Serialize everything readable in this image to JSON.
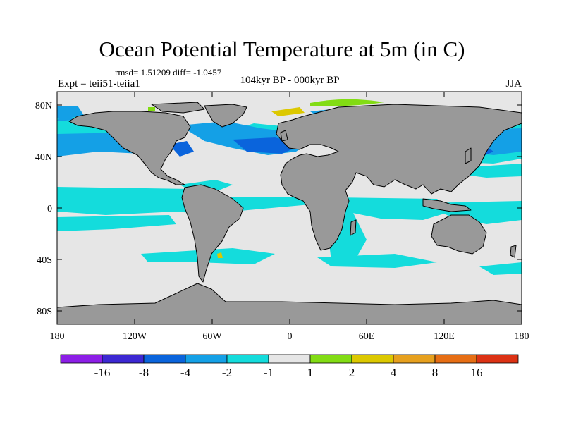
{
  "header": {
    "title": "Ocean Potential Temperature at 5m (in C)",
    "stats": "rmsd= 1.51209  diff= -1.0457",
    "left_subtitle": "Expt = teii51-teiia1",
    "center_subtitle": "104kyr BP - 000kyr BP",
    "right_subtitle": "JJA"
  },
  "axes": {
    "lat_ticks": [
      "80N",
      "40N",
      "0",
      "40S",
      "80S"
    ],
    "lon_ticks": [
      "180",
      "120W",
      "60W",
      "0",
      "60E",
      "120E",
      "180"
    ]
  },
  "colorbar": {
    "labels": [
      "-16",
      "-8",
      "-4",
      "-2",
      "-1",
      "1",
      "2",
      "4",
      "8",
      "16"
    ],
    "colors": [
      "#8c1ee6",
      "#3c28d2",
      "#0a64dc",
      "#14a0e6",
      "#14dcdc",
      "#e6e6e6",
      "#82dc14",
      "#dcc800",
      "#e6a01e",
      "#e66e14",
      "#dc3214"
    ]
  },
  "colors": {
    "land": "#999999",
    "ocean_neutral": "#e6e6e6",
    "coast": "#000000"
  }
}
